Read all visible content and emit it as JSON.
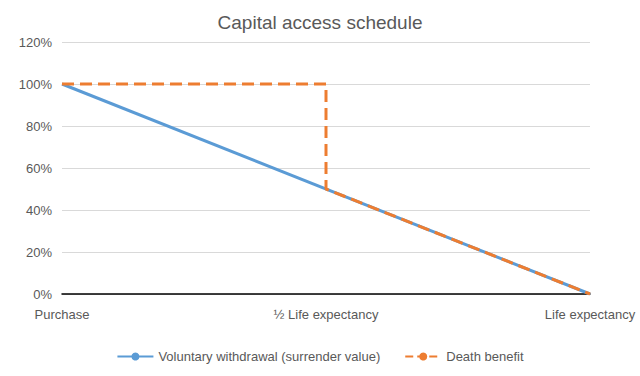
{
  "chart_data": {
    "type": "line",
    "title": "Capital access schedule",
    "xlim": [
      0,
      1
    ],
    "xticks": [
      {
        "value": 0,
        "label": "Purchase"
      },
      {
        "value": 0.5,
        "label": "½ Life expectancy"
      },
      {
        "value": 1,
        "label": "Life expectancy"
      }
    ],
    "ylim": [
      0,
      120
    ],
    "yticks": [
      {
        "value": 0,
        "label": "0%"
      },
      {
        "value": 20,
        "label": "20%"
      },
      {
        "value": 40,
        "label": "40%"
      },
      {
        "value": 60,
        "label": "60%"
      },
      {
        "value": 80,
        "label": "80%"
      },
      {
        "value": 100,
        "label": "100%"
      },
      {
        "value": 120,
        "label": "120%"
      }
    ],
    "grid": true,
    "legend": "bottom",
    "series": [
      {
        "name": "Voluntary withdrawal (surrender value)",
        "color": "#5b9bd5",
        "line_style": "solid",
        "x": [
          0,
          1
        ],
        "values": [
          100,
          0
        ]
      },
      {
        "name": "Death benefit",
        "color": "#ed7d31",
        "line_style": "dashed",
        "x": [
          0,
          0.5,
          0.5,
          1
        ],
        "values": [
          100,
          100,
          50,
          0
        ]
      }
    ]
  }
}
